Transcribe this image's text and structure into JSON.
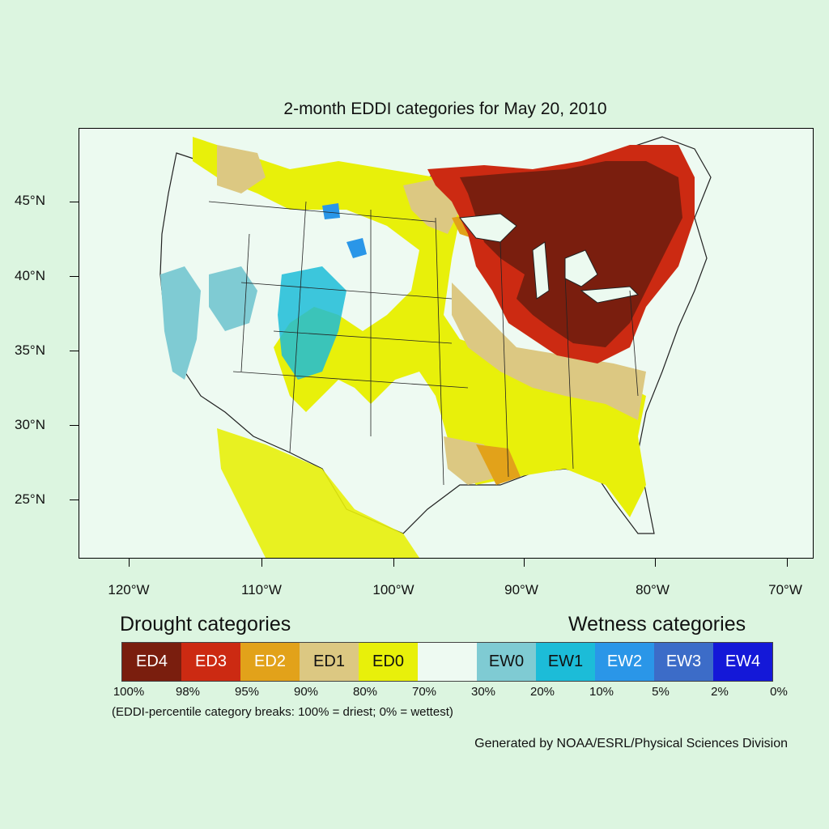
{
  "title": "2-month EDDI categories for May 20, 2010",
  "axes": {
    "lat_labels": [
      "45°N",
      "40°N",
      "35°N",
      "30°N",
      "25°N"
    ],
    "lon_labels": [
      "120°W",
      "110°W",
      "100°W",
      "90°W",
      "80°W",
      "70°W"
    ]
  },
  "legend": {
    "drought_heading": "Drought categories",
    "wetness_heading": "Wetness categories",
    "categories": [
      {
        "label": "ED4",
        "color": "#7a1e0e",
        "text_color": "#ffffff"
      },
      {
        "label": "ED3",
        "color": "#cc2a12",
        "text_color": "#ffffff"
      },
      {
        "label": "ED2",
        "color": "#e2a21a",
        "text_color": "#ffffff"
      },
      {
        "label": "ED1",
        "color": "#dcc882",
        "text_color": "#111111"
      },
      {
        "label": "ED0",
        "color": "#e8f00a",
        "text_color": "#111111"
      },
      {
        "label": "",
        "color": "#eefaf2",
        "text_color": "#111111"
      },
      {
        "label": "EW0",
        "color": "#7fcbd3",
        "text_color": "#111111"
      },
      {
        "label": "EW1",
        "color": "#1cbcd8",
        "text_color": "#111111"
      },
      {
        "label": "EW2",
        "color": "#2a96e8",
        "text_color": "#ffffff"
      },
      {
        "label": "EW3",
        "color": "#3c6cc8",
        "text_color": "#ffffff"
      },
      {
        "label": "EW4",
        "color": "#1418d8",
        "text_color": "#ffffff"
      }
    ],
    "percentiles": [
      "100%",
      "98%",
      "95%",
      "90%",
      "80%",
      "70%",
      "30%",
      "20%",
      "10%",
      "5%",
      "2%",
      "0%"
    ],
    "note": "(EDDI-percentile category breaks: 100% = driest; 0% = wettest)"
  },
  "credit": "Generated by NOAA/ESRL/Physical Sciences Division"
}
